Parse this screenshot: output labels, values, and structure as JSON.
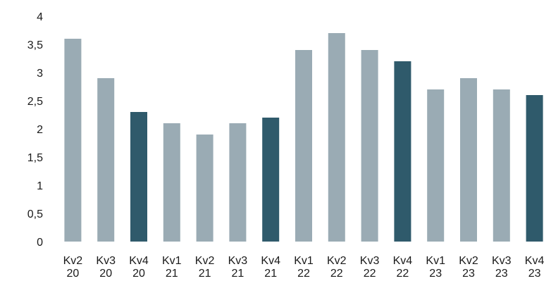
{
  "chart_data": {
    "type": "bar",
    "categories": [
      [
        "Kv2",
        "20"
      ],
      [
        "Kv3",
        "20"
      ],
      [
        "Kv4",
        "20"
      ],
      [
        "Kv1",
        "21"
      ],
      [
        "Kv2",
        "21"
      ],
      [
        "Kv3",
        "21"
      ],
      [
        "Kv4",
        "21"
      ],
      [
        "Kv1",
        "22"
      ],
      [
        "Kv2",
        "22"
      ],
      [
        "Kv3",
        "22"
      ],
      [
        "Kv4",
        "22"
      ],
      [
        "Kv1",
        "23"
      ],
      [
        "Kv2",
        "23"
      ],
      [
        "Kv3",
        "23"
      ],
      [
        "Kv4",
        "23"
      ]
    ],
    "values": [
      3.6,
      2.9,
      2.3,
      2.1,
      1.9,
      2.1,
      2.2,
      3.4,
      3.7,
      3.4,
      3.2,
      2.7,
      2.9,
      2.7,
      2.6
    ],
    "highlight": [
      false,
      false,
      true,
      false,
      false,
      false,
      true,
      false,
      false,
      false,
      true,
      false,
      false,
      false,
      true
    ],
    "yticks": [
      "0",
      "0,5",
      "1",
      "1,5",
      "2",
      "2,5",
      "3",
      "3,5",
      "4"
    ],
    "ylim": [
      0,
      4
    ],
    "title": "",
    "xlabel": "",
    "ylabel": "",
    "grid": false,
    "colors": {
      "bar": "#9aabb4",
      "highlight": "#2f5a6b"
    }
  }
}
